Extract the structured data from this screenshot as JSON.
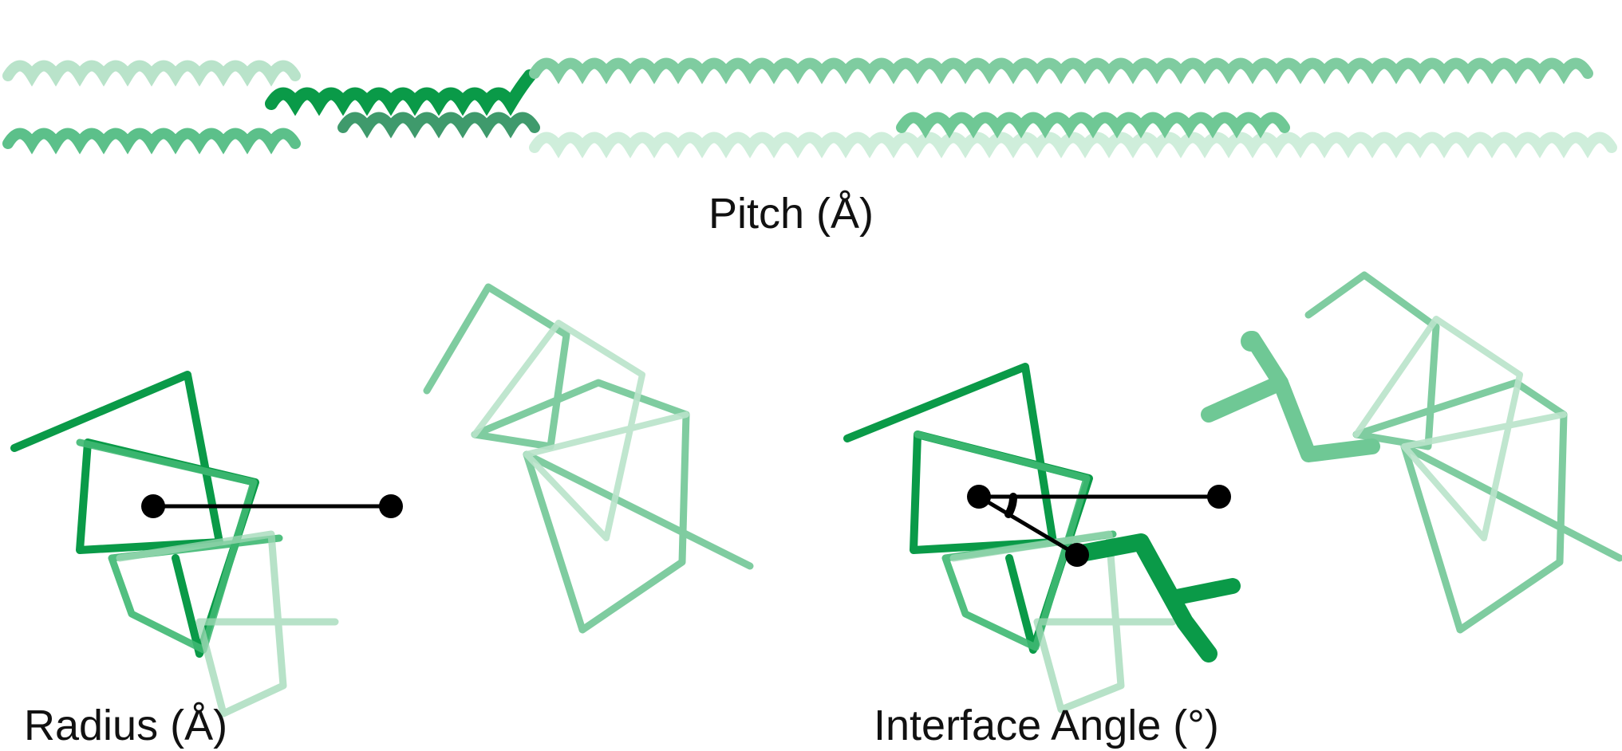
{
  "labels": {
    "pitch": "Pitch (Å)",
    "radius": "Radius (Å)",
    "interface_angle": "Interface Angle (°)"
  },
  "colors": {
    "dark_green": "#0a9a48",
    "mid_green": "#3eb872",
    "light_green": "#7fcca0",
    "pale_green": "#b9e3ca",
    "marker": "#000000"
  },
  "panels": [
    {
      "name": "coiled-coil-side-view",
      "caption": "labels.pitch"
    },
    {
      "name": "radius-top-view",
      "caption": "labels.radius"
    },
    {
      "name": "interface-angle-top-view",
      "caption": "labels.interface_angle"
    }
  ]
}
